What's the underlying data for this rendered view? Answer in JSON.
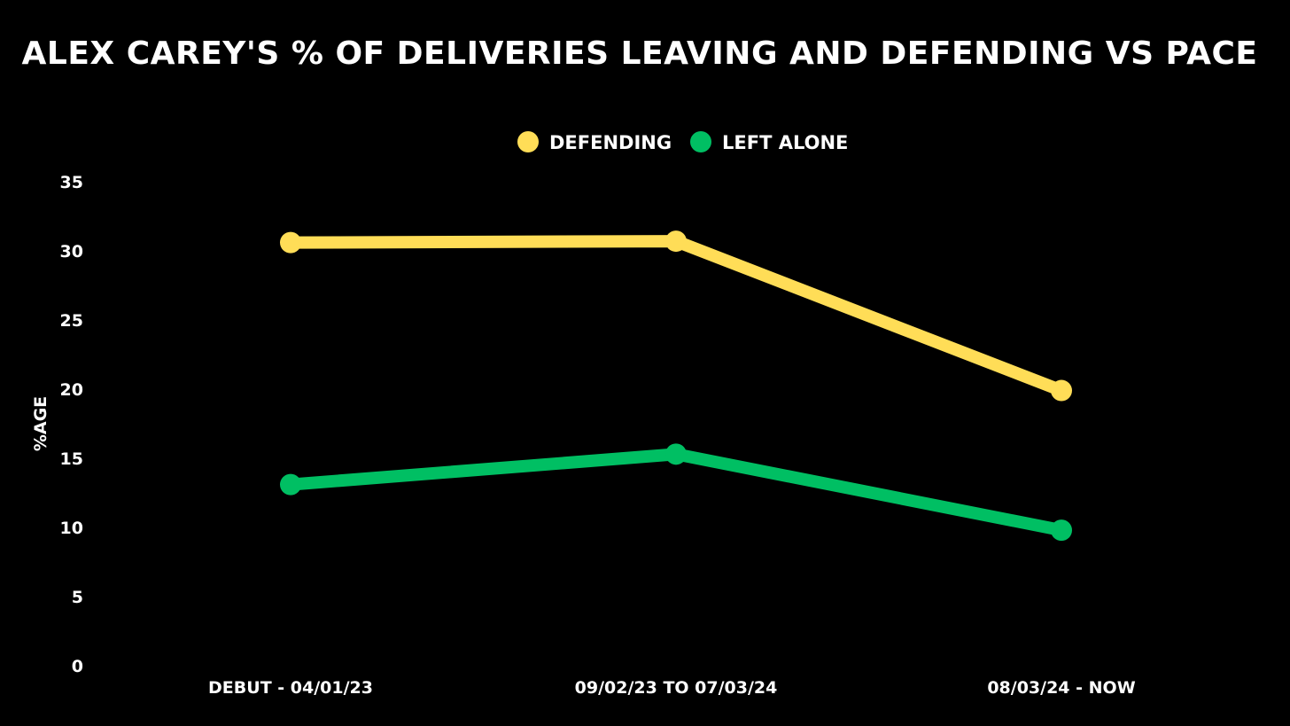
{
  "chart_data": {
    "type": "line",
    "title": "ALEX CAREY'S % OF DELIVERIES LEAVING AND DEFENDING VS PACE",
    "xlabel": "",
    "ylabel": "%AGE",
    "categories": [
      "DEBUT - 04/01/23",
      "09/02/23 TO 07/03/24",
      "08/03/24 - NOW"
    ],
    "ylim": [
      0,
      35
    ],
    "yticks": [
      0,
      5,
      10,
      15,
      20,
      25,
      30,
      35
    ],
    "grid": false,
    "legend_position": "top-center",
    "series": [
      {
        "name": "DEFENDING",
        "values": [
          30.6,
          30.7,
          19.9
        ],
        "color": "#FFDD57"
      },
      {
        "name": "LEFT ALONE",
        "values": [
          13.1,
          15.3,
          9.8
        ],
        "color": "#00BF63"
      }
    ]
  }
}
